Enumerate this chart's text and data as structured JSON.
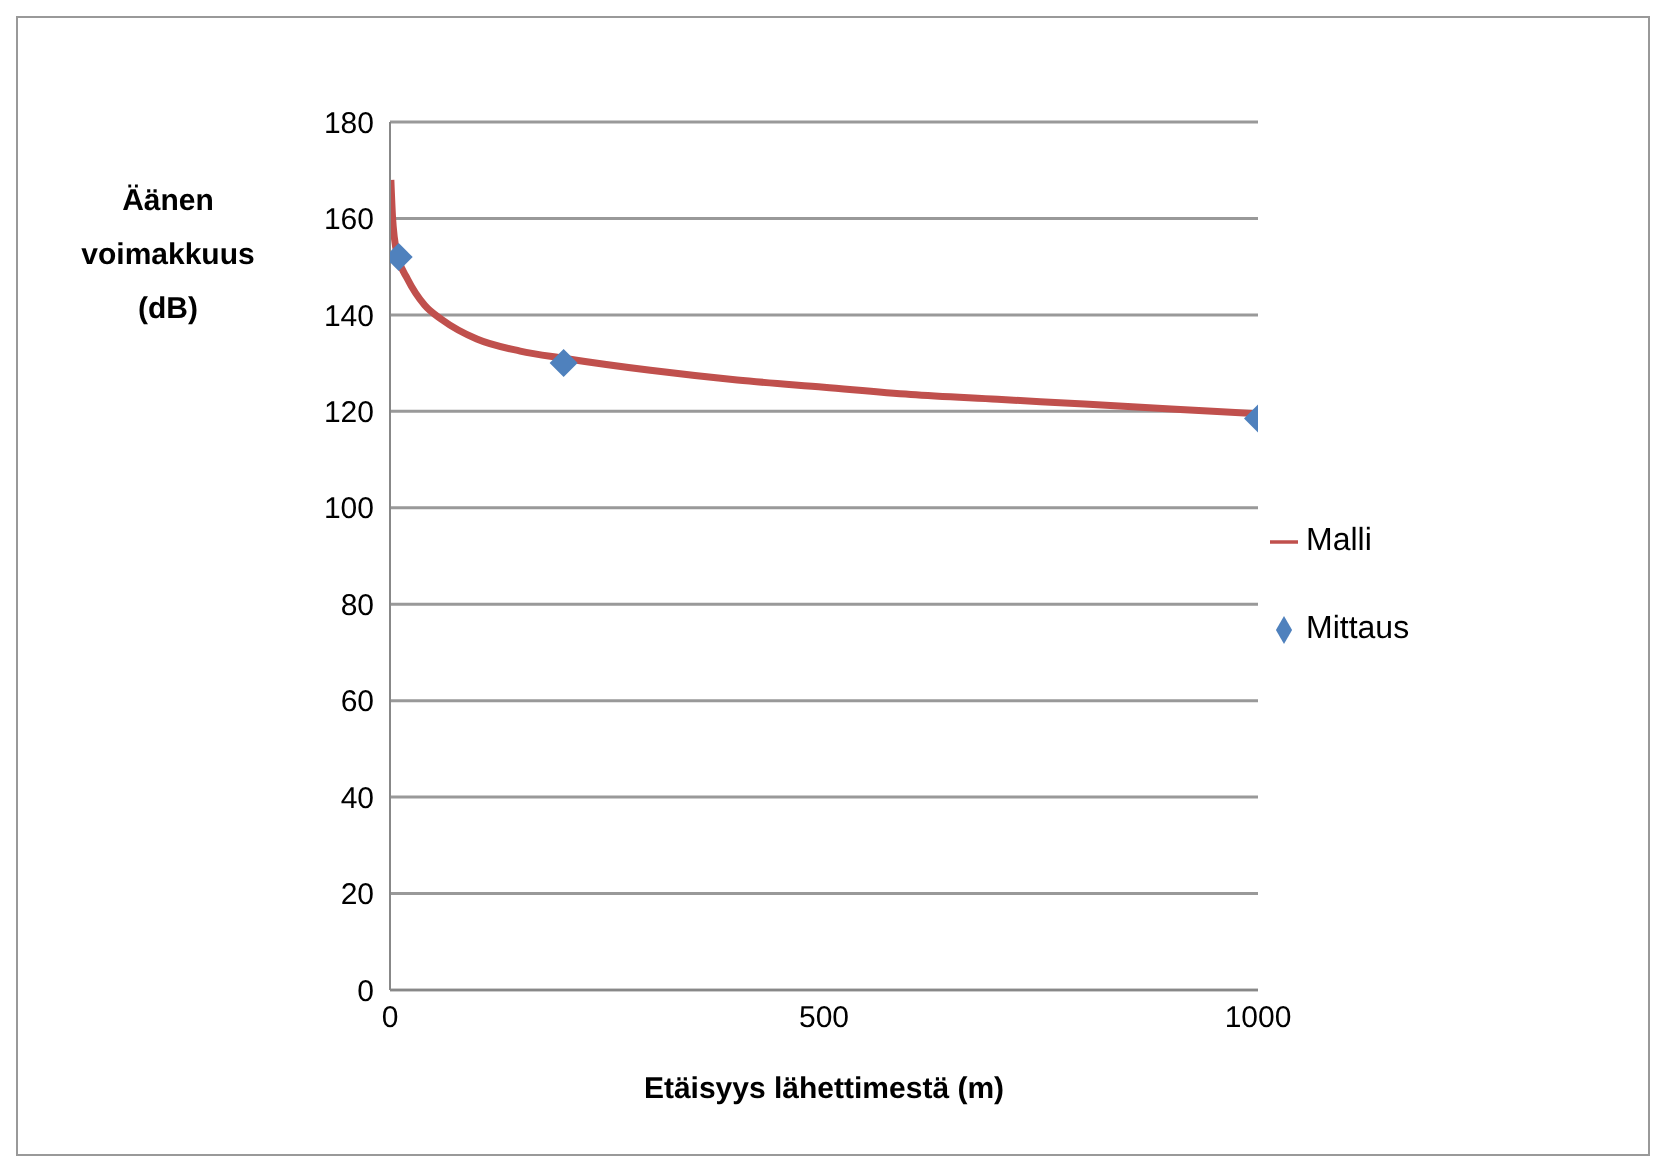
{
  "chart_data": {
    "type": "line",
    "xlabel": "Etäisyys lähettimestä (m)",
    "ylabel": "Äänen voimakkuus (dB)",
    "xlim": [
      0,
      1000
    ],
    "xticks": [
      0,
      500,
      1000
    ],
    "ylim": [
      0,
      180
    ],
    "yticks": [
      0,
      20,
      40,
      60,
      80,
      100,
      120,
      140,
      160,
      180
    ],
    "grid": "y",
    "legend": "right",
    "series": [
      {
        "name": "Malli",
        "type": "line",
        "color": "#c0504d",
        "marker": "none",
        "line_style": "solid",
        "x": [
          1,
          3,
          5,
          10,
          20,
          40,
          60,
          100,
          150,
          200,
          300,
          400,
          500,
          600,
          700,
          800,
          900,
          1000
        ],
        "values": [
          168,
          160,
          156,
          151.5,
          147.5,
          142,
          139,
          135,
          132.5,
          131,
          128.5,
          126.5,
          125,
          123.5,
          122.5,
          121.5,
          120.5,
          119.5
        ]
      },
      {
        "name": "Mittaus",
        "type": "scatter",
        "color": "#4f81bd",
        "marker": "diamond",
        "x": [
          10,
          200,
          1000
        ],
        "values": [
          152,
          130,
          118.5
        ]
      }
    ]
  }
}
